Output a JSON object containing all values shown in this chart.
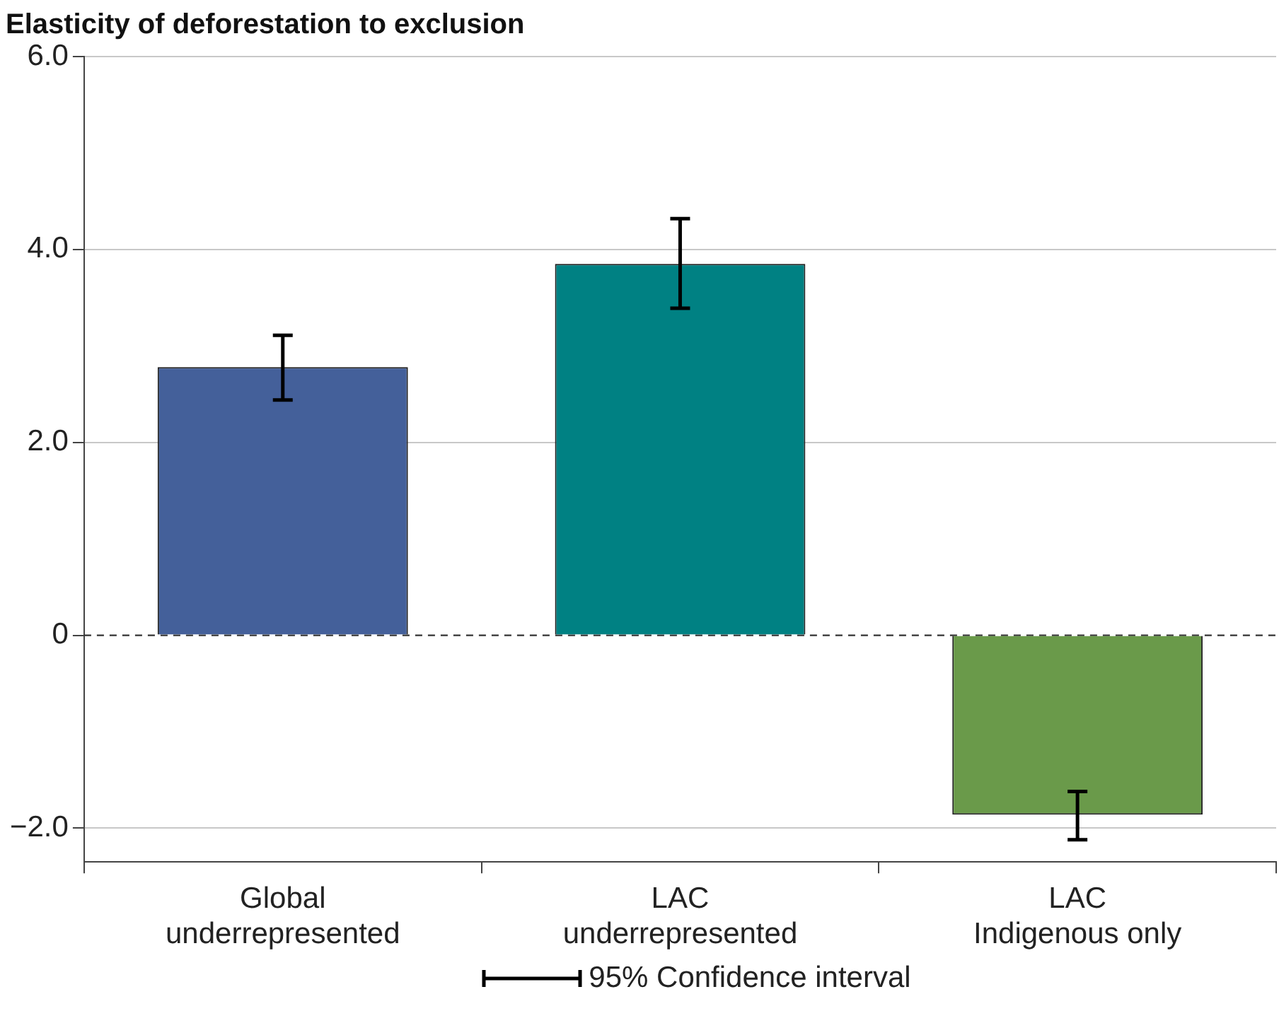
{
  "chart_data": {
    "type": "bar",
    "ylabel": "Elasticity of deforestation to exclusion",
    "categories": [
      "Global underrepresented",
      "LAC underrepresented",
      "LAC Indigenous only"
    ],
    "values": [
      2.78,
      3.85,
      -1.86
    ],
    "colors": [
      "#44609a",
      "#008183",
      "#6a9a4a"
    ],
    "errors": [
      [
        2.44,
        3.11
      ],
      [
        3.39,
        4.32
      ],
      [
        -2.12,
        -1.62
      ]
    ],
    "ylim": [
      -2.35,
      6
    ],
    "yticks": [
      {
        "value": -2,
        "label": "−2.0"
      },
      {
        "value": 0,
        "label": "0"
      },
      {
        "value": 2,
        "label": "2.0"
      },
      {
        "value": 4,
        "label": "4.0"
      },
      {
        "value": 6,
        "label": "6.0"
      }
    ],
    "grid": "y",
    "ref_lines": [
      {
        "axis": "y",
        "value": 0,
        "line_style": "dashed",
        "color": "#333333"
      }
    ],
    "annotations": [
      "95% Confidence interval"
    ]
  }
}
